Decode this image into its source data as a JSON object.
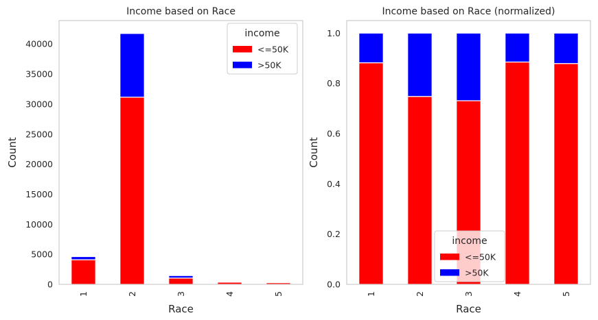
{
  "chart_data": [
    {
      "type": "bar",
      "stacked": true,
      "title": "Income based on Race",
      "xlabel": "Race",
      "ylabel": "Count",
      "categories": [
        "1",
        "2",
        "3",
        "4",
        "5"
      ],
      "series": [
        {
          "name": "<=50K",
          "color": "#ff0000",
          "values": [
            4100,
            31150,
            1050,
            370,
            280
          ]
        },
        {
          "name": ">50K",
          "color": "#0000ff",
          "values": [
            520,
            10600,
            410,
            50,
            40
          ]
        }
      ],
      "ylim": [
        0,
        43900
      ],
      "yticks": [
        0,
        5000,
        10000,
        15000,
        20000,
        25000,
        30000,
        35000,
        40000
      ],
      "grid": false,
      "legend": {
        "title": "income",
        "placement": "top-right"
      }
    },
    {
      "type": "bar",
      "stacked": true,
      "title": "Income based on Race (normalized)",
      "xlabel": "Race",
      "ylabel": "Count",
      "categories": [
        "1",
        "2",
        "3",
        "4",
        "5"
      ],
      "series": [
        {
          "name": "<=50K",
          "color": "#ff0000",
          "values": [
            0.882,
            0.748,
            0.731,
            0.885,
            0.879
          ]
        },
        {
          "name": ">50K",
          "color": "#0000ff",
          "values": [
            0.118,
            0.252,
            0.269,
            0.115,
            0.121
          ]
        }
      ],
      "ylim": [
        0,
        1.05
      ],
      "yticks": [
        0.0,
        0.2,
        0.4,
        0.6,
        0.8,
        1.0
      ],
      "ytick_labels": [
        "0.0",
        "0.2",
        "0.4",
        "0.6",
        "0.8",
        "1.0"
      ],
      "grid": false,
      "legend": {
        "title": "income",
        "placement": "lower-center"
      }
    }
  ]
}
